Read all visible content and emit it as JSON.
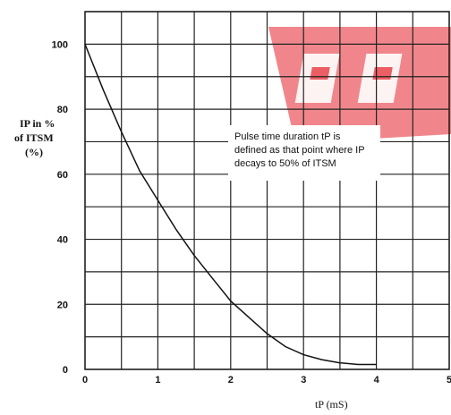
{
  "chart_data": {
    "type": "line",
    "xlabel": "tP (mS)",
    "ylabel_lines": [
      "IP in %",
      "of ITSM",
      "(%)"
    ],
    "xlim": [
      0,
      5
    ],
    "ylim": [
      0,
      110
    ],
    "xticks": [
      "0",
      "1",
      "2",
      "3",
      "4",
      "5"
    ],
    "yticks": [
      "0",
      "20",
      "40",
      "60",
      "80",
      "100"
    ],
    "grid": true,
    "annotation": [
      "Pulse time duration tP is",
      "defined as that point where IP",
      "decays to 50% of ITSM"
    ],
    "series": [
      {
        "x": [
          0,
          0.25,
          0.5,
          0.75,
          1.0,
          1.25,
          1.5,
          1.75,
          2.0,
          2.25,
          2.5,
          2.75,
          3.0,
          3.25,
          3.5,
          3.75,
          4.0
        ],
        "values": [
          100,
          86,
          73,
          61,
          52,
          43,
          35,
          28,
          21,
          16,
          11,
          7,
          4.5,
          3,
          2,
          1.5,
          1.5
        ]
      }
    ],
    "watermark_color": "#e0323c"
  }
}
